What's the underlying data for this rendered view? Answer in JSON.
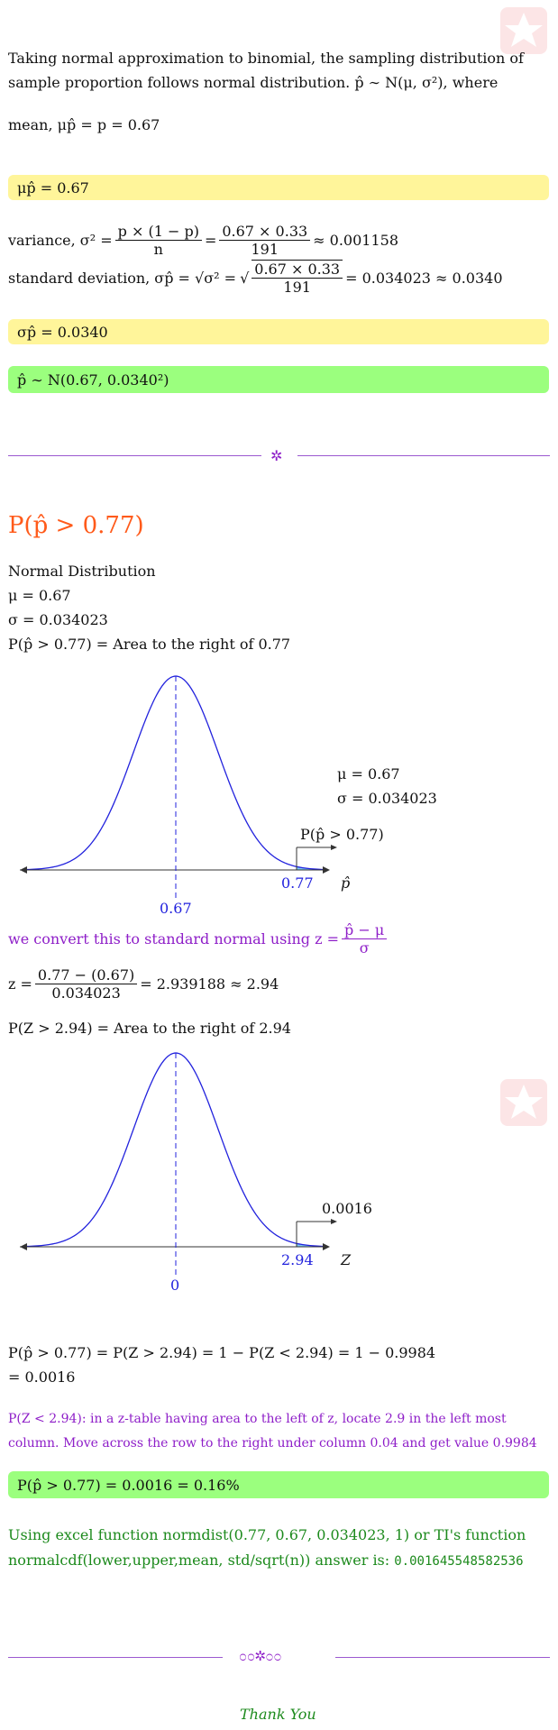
{
  "intro": {
    "line1": "Taking normal approximation to binomial, the sampling distribution of",
    "line2": "sample proportion follows normal distribution. p̂ ∼ N(μ, σ²), where"
  },
  "mean_line": "mean, μp̂ = p = 0.67",
  "mean_box": "μp̂ = 0.67",
  "variance": {
    "prefix": "variance, σ² =",
    "frac1_num": "p × (1 − p)",
    "frac1_den": "n",
    "eq": "=",
    "frac2_num": "0.67 × 0.33",
    "frac2_den": "191",
    "result": "≈ 0.001158"
  },
  "sd": {
    "prefix": "standard deviation, σp̂ = √σ² =",
    "num": "0.67 × 0.33",
    "den": "191",
    "result": "= 0.034023 ≈ 0.0340"
  },
  "sd_box": "σp̂ = 0.0340",
  "dist_box": "p̂ ∼ N(0.67, 0.0340²)",
  "question_title": "P(p̂ > 0.77)",
  "params": {
    "line1": "Normal Distribution",
    "line2": "μ = 0.67",
    "line3": "σ = 0.034023",
    "line4": "P(p̂ > 0.77) = Area to the right of 0.77"
  },
  "chart1": {
    "mu_label": "μ = 0.67",
    "sigma_label": "σ = 0.034023",
    "prob_label": "P(p̂ > 0.77)",
    "tick_value": "0.77",
    "mean_value": "0.67",
    "axis_label": "p̂"
  },
  "convert": {
    "text": "we convert this to standard normal using z =",
    "num": "p̂ − μ",
    "den": "σ"
  },
  "z_calc": {
    "prefix": "z =",
    "num": "0.77 − (0.67)",
    "den": "0.034023",
    "result": "= 2.939188 ≈ 2.94"
  },
  "pz_line": "P(Z > 2.94) = Area to the right of 2.94",
  "chart2": {
    "prob_label": "0.0016",
    "tick_value": "2.94",
    "mean_value": "0",
    "axis_label": "Z"
  },
  "result_lines": {
    "line1": "P(p̂ > 0.77) = P(Z > 2.94) = 1 − P(Z < 2.94) = 1 − 0.9984",
    "line2": "= 0.0016"
  },
  "ztable_note": {
    "line1": "P(Z < 2.94): in a z-table having area to the left of z, locate 2.9 in the left most",
    "line2": "column. Move across the row to the right under column 0.04 and get value 0.9984"
  },
  "answer_box": "P(p̂ > 0.77) = 0.0016 = 0.16%",
  "excel": {
    "line1": "Using excel function normdist(0.77, 0.67, 0.034023, 1) or TI's function",
    "line2": "normalcdf(lower,upper,mean, std/sqrt(n)) answer is:",
    "value": "0.001645548582536"
  },
  "ornament": "೦೦✲೦೦",
  "thank_you": "Thank You",
  "colors": {
    "curve": "#2222dd",
    "shade": "#7ec8f5",
    "highlight_yellow": "#fff59a",
    "highlight_green": "#9bff7e",
    "purple": "#8e1ec8",
    "orange": "#ff5a1a",
    "green_text": "#1c8a1c"
  }
}
